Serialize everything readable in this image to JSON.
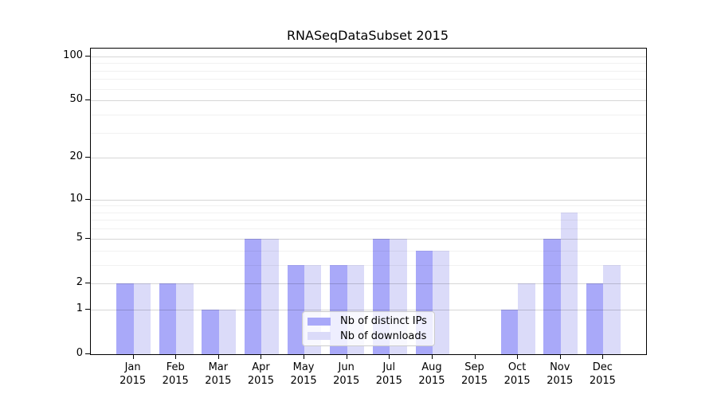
{
  "chart_data": {
    "type": "bar",
    "title": "RNASeqDataSubset 2015",
    "xlabel": "",
    "ylabel": "",
    "categories": [
      "Jan 2015",
      "Feb 2015",
      "Mar 2015",
      "Apr 2015",
      "May 2015",
      "Jun 2015",
      "Jul 2015",
      "Aug 2015",
      "Sep 2015",
      "Oct 2015",
      "Nov 2015",
      "Dec 2015"
    ],
    "series": [
      {
        "name": "Nb of distinct IPs",
        "color": "#a9a9f9",
        "values": [
          2,
          2,
          1,
          5,
          3,
          3,
          5,
          4,
          0,
          1,
          5,
          2
        ]
      },
      {
        "name": "Nb of downloads",
        "color": "#dbdbf9",
        "values": [
          2,
          2,
          1,
          5,
          3,
          3,
          5,
          4,
          0,
          2,
          8,
          3
        ]
      }
    ],
    "scale": "log1p",
    "ylim": [
      0,
      113
    ],
    "yticks": [
      0,
      1,
      2,
      5,
      10,
      20,
      50,
      100
    ],
    "minor_yticks": [
      3,
      4,
      6,
      7,
      8,
      9,
      30,
      40,
      60,
      70,
      80,
      90
    ],
    "grid": true,
    "legend_position": "lower center inside"
  }
}
